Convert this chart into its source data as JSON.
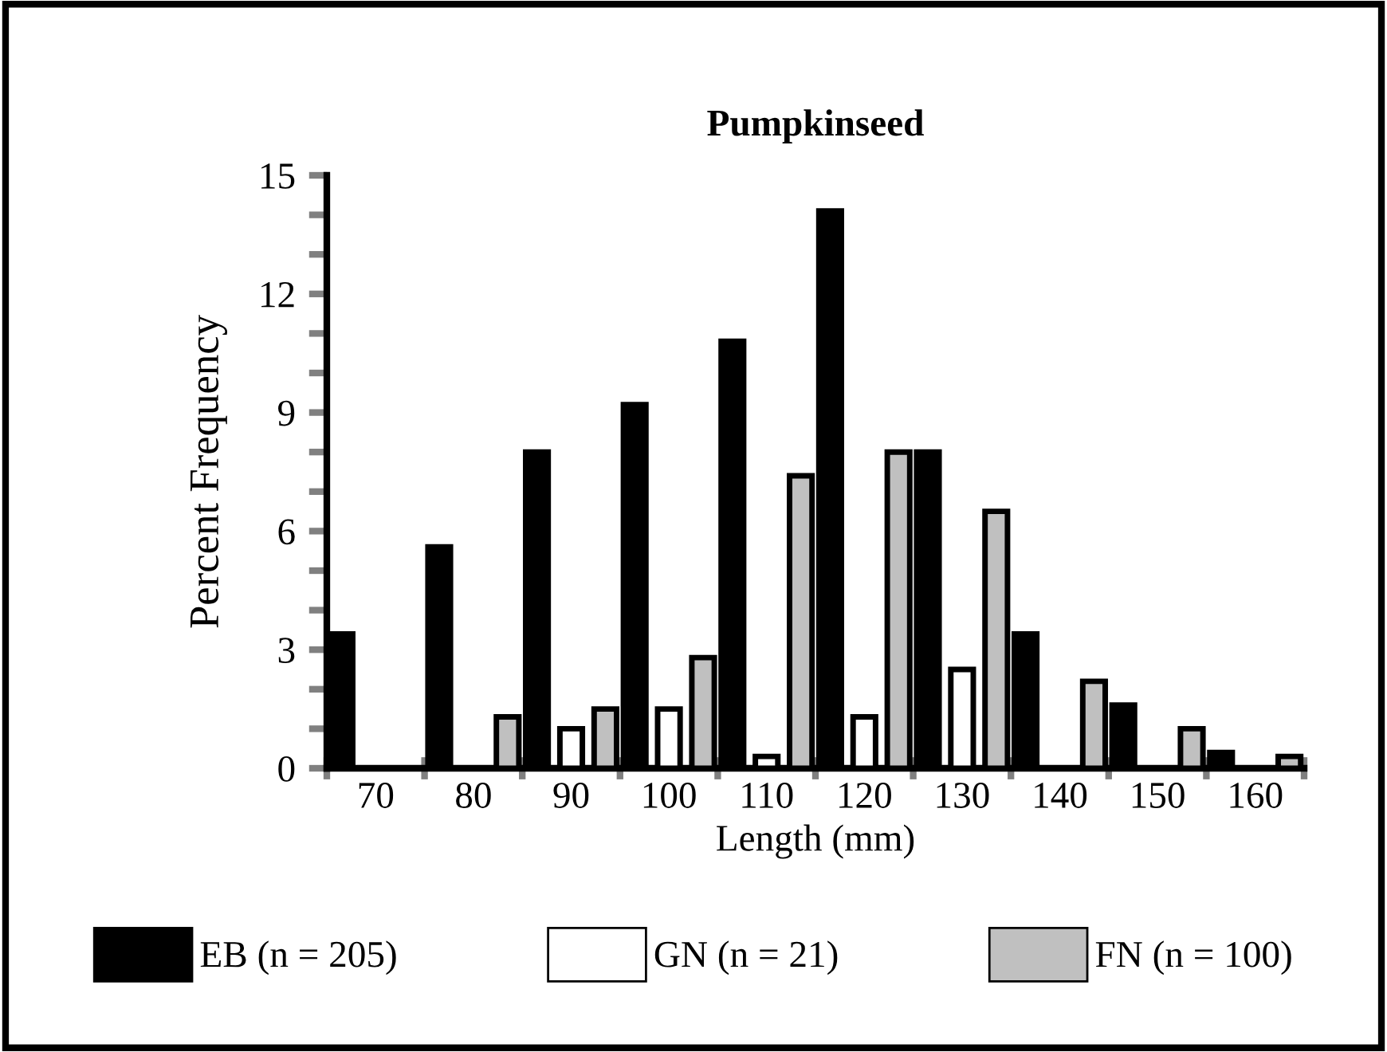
{
  "chart_data": {
    "type": "bar",
    "title": "Pumpkinseed",
    "xlabel": "Length (mm)",
    "ylabel": "Percent Frequency",
    "categories": [
      "70",
      "80",
      "90",
      "100",
      "110",
      "120",
      "130",
      "140",
      "150",
      "160"
    ],
    "series": [
      {
        "name": "EB (n = 205)",
        "color": "#000000",
        "values": [
          3.4,
          5.6,
          8.0,
          9.2,
          10.8,
          14.1,
          8.0,
          3.4,
          1.6,
          0.4
        ]
      },
      {
        "name": "GN (n = 21)",
        "color": "#ffffff",
        "values": [
          0,
          0,
          1.0,
          1.5,
          0.3,
          1.3,
          2.5,
          0,
          0,
          0
        ]
      },
      {
        "name": "FN (n = 100)",
        "color": "#c0c0c0",
        "values": [
          0,
          1.3,
          1.5,
          2.8,
          7.4,
          8.0,
          6.5,
          2.2,
          1.0,
          0.3
        ]
      }
    ],
    "ylim": [
      0,
      15
    ],
    "yticks": [
      0,
      {
        "value": 1,
        "label": null
      },
      {
        "value": 2,
        "label": null
      },
      3,
      {
        "value": 4,
        "label": null
      },
      {
        "value": 5,
        "label": null
      },
      6,
      {
        "value": 7,
        "label": null
      },
      {
        "value": 8,
        "label": null
      },
      9,
      {
        "value": 10,
        "label": null
      },
      {
        "value": 11,
        "label": null
      },
      12,
      {
        "value": 13,
        "label": null
      },
      {
        "value": 14,
        "label": null
      },
      15
    ],
    "grid": false,
    "legend": "bottom"
  }
}
